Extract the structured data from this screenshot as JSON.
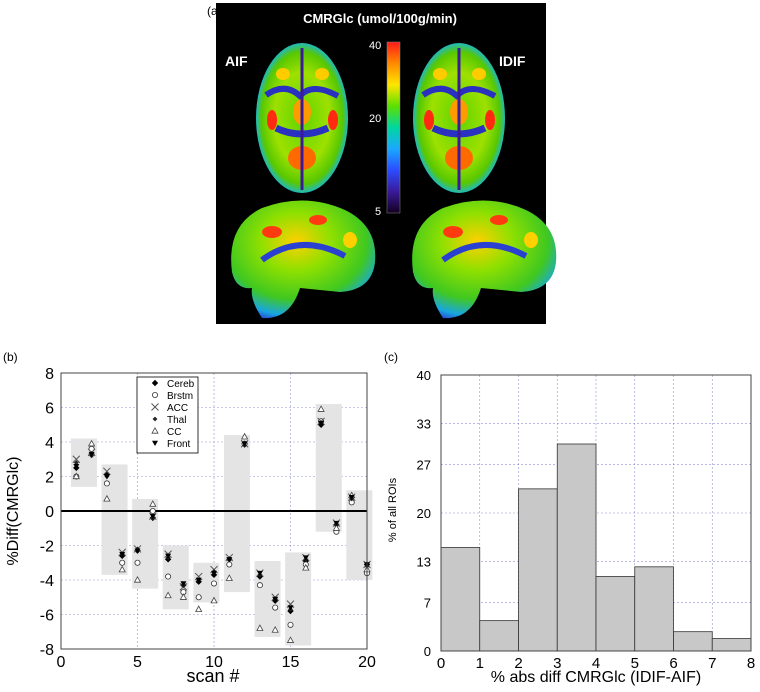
{
  "panel_a": {
    "label": "(a)",
    "colorbar_title": "CMRGlc (umol/100g/min)",
    "left_label": "AIF",
    "right_label": "IDIF",
    "colorbar_ticks": [
      "40",
      "20",
      "5"
    ],
    "colorbar_colors": [
      "#ff1a1a",
      "#ff8a00",
      "#ffe600",
      "#5ce000",
      "#00d6a0",
      "#1aa8ff",
      "#2a4cff",
      "#3a1a9a",
      "#120020"
    ]
  },
  "chart_data": [
    {
      "type": "scatter",
      "panel_label": "(b)",
      "xlabel": "scan #",
      "ylabel": "%Diff(CMRGlc)",
      "xlim": [
        0,
        20
      ],
      "ylim": [
        -8,
        8
      ],
      "xticks": [
        0,
        5,
        10,
        15,
        20
      ],
      "yticks": [
        8,
        6,
        4,
        2,
        0,
        -2,
        -4,
        -6,
        -8
      ],
      "grid": true,
      "legend_position": "top-center",
      "zero_line": true,
      "range_bars": [
        {
          "scan": 1.5,
          "low": 1.4,
          "high": 4.2
        },
        {
          "scan": 3.5,
          "low": -3.7,
          "high": 2.7
        },
        {
          "scan": 5.5,
          "low": -4.5,
          "high": 0.7
        },
        {
          "scan": 7.5,
          "low": -5.7,
          "high": -2.0
        },
        {
          "scan": 9.5,
          "low": -5.3,
          "high": -3.0
        },
        {
          "scan": 11.5,
          "low": -4.7,
          "high": 4.4
        },
        {
          "scan": 13.5,
          "low": -7.3,
          "high": -2.9
        },
        {
          "scan": 15.5,
          "low": -7.8,
          "high": -2.4
        },
        {
          "scan": 17.5,
          "low": -1.2,
          "high": 6.2
        },
        {
          "scan": 19.5,
          "low": -4.0,
          "high": 1.2
        }
      ],
      "series": [
        {
          "name": "Cereb",
          "marker": "filled-diamond",
          "points": [
            [
              1,
              2.5
            ],
            [
              2,
              3.3
            ],
            [
              3,
              2.1
            ],
            [
              4,
              -2.6
            ],
            [
              5,
              -2.3
            ],
            [
              6,
              -0.4
            ],
            [
              7,
              -2.8
            ],
            [
              8,
              -4.3
            ],
            [
              9,
              -4.1
            ],
            [
              10,
              -3.7
            ],
            [
              11,
              -2.8
            ],
            [
              12,
              3.9
            ],
            [
              13,
              -3.8
            ],
            [
              14,
              -5.2
            ],
            [
              15,
              -5.8
            ],
            [
              16,
              -2.9
            ],
            [
              17,
              5.0
            ],
            [
              18,
              -0.8
            ],
            [
              19,
              0.8
            ],
            [
              20,
              -3.1
            ]
          ]
        },
        {
          "name": "Brstm",
          "marker": "open-circle",
          "points": [
            [
              1,
              2.0
            ],
            [
              2,
              3.6
            ],
            [
              3,
              1.6
            ],
            [
              4,
              -3.0
            ],
            [
              5,
              -3.0
            ],
            [
              6,
              0.0
            ],
            [
              7,
              -3.8
            ],
            [
              8,
              -4.7
            ],
            [
              9,
              -5.0
            ],
            [
              10,
              -4.2
            ],
            [
              11,
              -3.1
            ],
            [
              12,
              3.9
            ],
            [
              13,
              -4.3
            ],
            [
              14,
              -5.6
            ],
            [
              15,
              -6.6
            ],
            [
              16,
              -3.1
            ],
            [
              17,
              5.2
            ],
            [
              18,
              -1.2
            ],
            [
              19,
              0.5
            ],
            [
              20,
              -3.6
            ]
          ]
        },
        {
          "name": "ACC",
          "marker": "x",
          "points": [
            [
              1,
              3.0
            ],
            [
              2,
              3.4
            ],
            [
              3,
              2.3
            ],
            [
              4,
              -2.4
            ],
            [
              5,
              -2.2
            ],
            [
              6,
              -0.3
            ],
            [
              7,
              -2.5
            ],
            [
              8,
              -4.4
            ],
            [
              9,
              -3.8
            ],
            [
              10,
              -3.4
            ],
            [
              11,
              -2.7
            ],
            [
              12,
              3.9
            ],
            [
              13,
              -3.6
            ],
            [
              14,
              -5.0
            ],
            [
              15,
              -5.4
            ],
            [
              16,
              -2.7
            ],
            [
              17,
              5.2
            ],
            [
              18,
              -0.7
            ],
            [
              19,
              0.8
            ],
            [
              20,
              -3.1
            ]
          ]
        },
        {
          "name": "Thal",
          "marker": "small-filled-diamond",
          "points": [
            [
              1,
              2.8
            ],
            [
              2,
              3.2
            ],
            [
              3,
              2.0
            ],
            [
              4,
              -2.5
            ],
            [
              5,
              -2.2
            ],
            [
              6,
              -0.4
            ],
            [
              7,
              -2.7
            ],
            [
              8,
              -4.3
            ],
            [
              9,
              -4.0
            ],
            [
              10,
              -3.5
            ],
            [
              11,
              -2.8
            ],
            [
              12,
              3.8
            ],
            [
              13,
              -3.7
            ],
            [
              14,
              -5.1
            ],
            [
              15,
              -5.7
            ],
            [
              16,
              -2.8
            ],
            [
              17,
              5.1
            ],
            [
              18,
              -0.8
            ],
            [
              19,
              0.7
            ],
            [
              20,
              -3.2
            ]
          ]
        },
        {
          "name": "CC",
          "marker": "open-triangle",
          "points": [
            [
              1,
              2.0
            ],
            [
              2,
              3.9
            ],
            [
              3,
              0.7
            ],
            [
              4,
              -3.4
            ],
            [
              5,
              -4.0
            ],
            [
              6,
              0.4
            ],
            [
              7,
              -4.9
            ],
            [
              8,
              -5.0
            ],
            [
              9,
              -5.7
            ],
            [
              10,
              -5.2
            ],
            [
              11,
              -3.9
            ],
            [
              12,
              4.3
            ],
            [
              13,
              -6.8
            ],
            [
              14,
              -6.9
            ],
            [
              15,
              -7.5
            ],
            [
              16,
              -3.3
            ],
            [
              17,
              5.9
            ],
            [
              18,
              -1.0
            ],
            [
              19,
              0.9
            ],
            [
              20,
              -3.4
            ]
          ]
        },
        {
          "name": "Front",
          "marker": "filled-triangle-down",
          "points": [
            [
              1,
              2.6
            ],
            [
              2,
              3.3
            ],
            [
              3,
              2.0
            ],
            [
              4,
              -2.5
            ],
            [
              5,
              -2.3
            ],
            [
              6,
              -0.3
            ],
            [
              7,
              -2.6
            ],
            [
              8,
              -4.2
            ],
            [
              9,
              -4.0
            ],
            [
              10,
              -3.6
            ],
            [
              11,
              -2.8
            ],
            [
              12,
              3.9
            ],
            [
              13,
              -3.6
            ],
            [
              14,
              -5.1
            ],
            [
              15,
              -5.6
            ],
            [
              16,
              -2.7
            ],
            [
              17,
              5.1
            ],
            [
              18,
              -0.7
            ],
            [
              19,
              0.8
            ],
            [
              20,
              -3.1
            ]
          ]
        }
      ]
    },
    {
      "type": "bar",
      "panel_label": "(c)",
      "xlabel": "% abs diff CMRGlc (IDIF-AIF)",
      "ylabel": "% of all ROIs",
      "xlim": [
        0,
        8
      ],
      "ylim": [
        0,
        40
      ],
      "xticks": [
        0,
        1,
        2,
        3,
        4,
        5,
        6,
        7,
        8
      ],
      "yticks": [
        0,
        7,
        13,
        20,
        27,
        33,
        40
      ],
      "grid": true,
      "bins": [
        [
          0,
          1
        ],
        [
          1,
          2
        ],
        [
          2,
          3
        ],
        [
          3,
          4
        ],
        [
          4,
          5
        ],
        [
          5,
          6
        ],
        [
          6,
          7
        ],
        [
          7,
          8
        ]
      ],
      "values": [
        15.0,
        4.4,
        23.5,
        30.0,
        10.8,
        12.2,
        2.8,
        1.8
      ],
      "bar_color": "#c8c8c8"
    }
  ]
}
